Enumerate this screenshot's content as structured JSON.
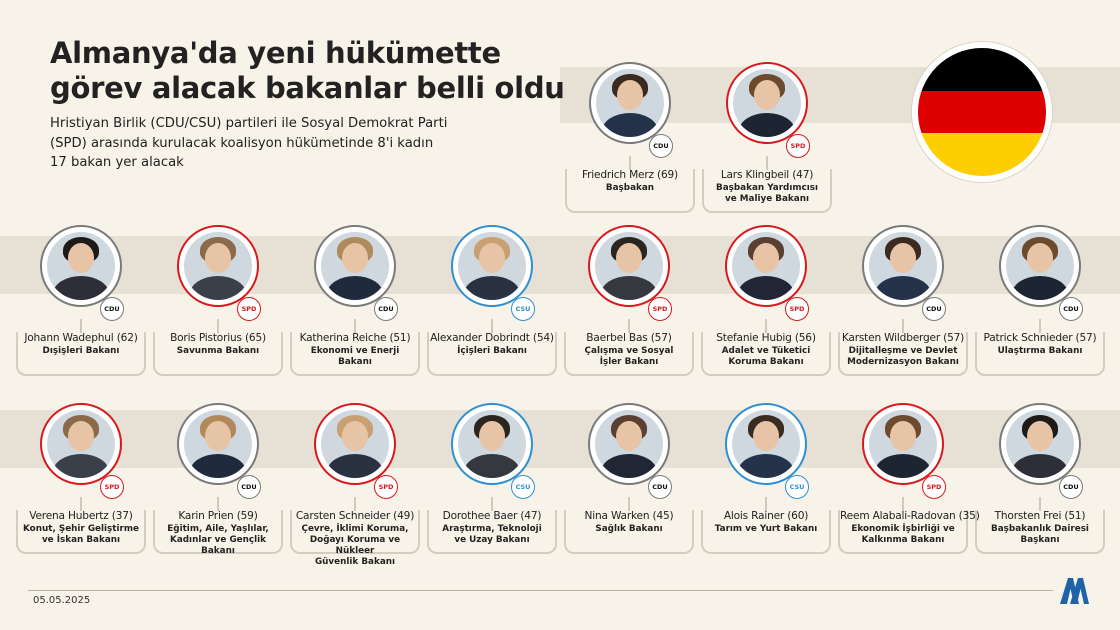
{
  "title_lines": [
    "Almanya'da yeni hükümette",
    "görev alacak bakanlar belli oldu"
  ],
  "subtitle": "Hristiyan Birlik (CDU/CSU) partileri ile Sosyal Demokrat Parti (SPD) arasında kurulacak koalisyon hükümetinde 8'i kadın 17 bakan yer alacak",
  "date": "05.05.2025",
  "flag_colors": [
    "#000000",
    "#dd0000",
    "#ffce00"
  ],
  "party_colors": {
    "cdu": "#7a7a7a",
    "spd": "#d7191c",
    "csu": "#2f8fd0"
  },
  "party_labels": {
    "cdu": "CDU",
    "spd": "SPD",
    "csu": "CSU"
  },
  "logo_icon": "aa-logo-icon",
  "leaders": [
    {
      "name": "Friedrich Merz (69)",
      "role": "Başbakan",
      "party": "cdu"
    },
    {
      "name": "Lars Klingbeil (47)",
      "role": "Başbakan Yardımcısı\nve Maliye Bakanı",
      "party": "spd"
    }
  ],
  "ministers_row1": [
    {
      "name": "Johann Wadephul (62)",
      "role": "Dışişleri Bakanı",
      "party": "cdu"
    },
    {
      "name": "Boris Pistorius (65)",
      "role": "Savunma Bakanı",
      "party": "spd"
    },
    {
      "name": "Katherina Reiche (51)",
      "role": "Ekonomi ve Enerji\nBakanı",
      "party": "cdu"
    },
    {
      "name": "Alexander Dobrindt (54)",
      "role": "İçişleri Bakanı",
      "party": "csu"
    },
    {
      "name": "Baerbel Bas (57)",
      "role": "Çalışma ve Sosyal\nİşler Bakanı",
      "party": "spd"
    },
    {
      "name": "Stefanie Hubig (56)",
      "role": "Adalet ve Tüketici\nKoruma Bakanı",
      "party": "spd"
    },
    {
      "name": "Karsten Wildberger (57)",
      "role": "Dijitalleşme ve Devlet\nModernizasyon Bakanı",
      "party": "cdu"
    },
    {
      "name": "Patrick Schnieder (57)",
      "role": "Ulaştırma Bakanı",
      "party": "cdu"
    }
  ],
  "ministers_row2": [
    {
      "name": "Verena Hubertz (37)",
      "role": "Konut, Şehir Geliştirme\nve İskan Bakanı",
      "party": "spd"
    },
    {
      "name": "Karin Prien (59)",
      "role": "Eğitim, Aile, Yaşlılar,\nKadınlar ve Gençlik Bakanı",
      "party": "cdu"
    },
    {
      "name": "Carsten Schneider (49)",
      "role": "Çevre, İklimi Koruma,\nDoğayı Koruma ve Nükleer\nGüvenlik Bakanı",
      "party": "spd"
    },
    {
      "name": "Dorothee Baer (47)",
      "role": "Araştırma, Teknoloji\nve Uzay Bakanı",
      "party": "csu"
    },
    {
      "name": "Nina Warken (45)",
      "role": "Sağlık Bakanı",
      "party": "cdu"
    },
    {
      "name": "Alois Rainer (60)",
      "role": "Tarım ve Yurt Bakanı",
      "party": "csu"
    },
    {
      "name": "Reem Alabali-Radovan (35)",
      "role": "Ekonomik İşbirliği ve\nKalkınma Bakanı",
      "party": "spd"
    },
    {
      "name": "Thorsten Frei (51)",
      "role": "Başbakanlık Dairesi\nBaşkanı",
      "party": "cdu"
    }
  ]
}
